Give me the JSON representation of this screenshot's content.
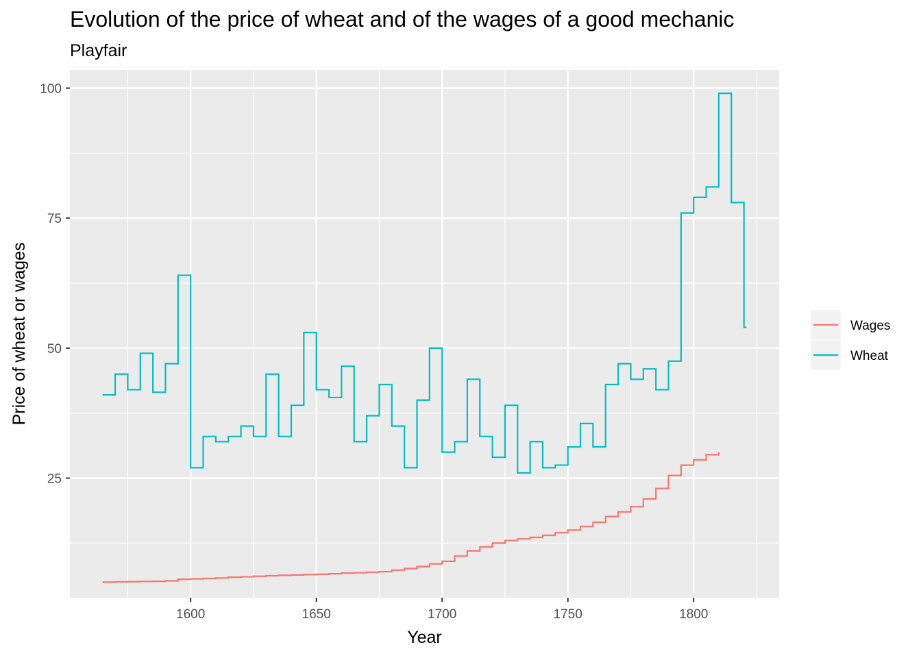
{
  "chart_data": {
    "type": "line",
    "line_style": "step",
    "title": "Evolution of the price of wheat and of the wages of a good mechanic",
    "subtitle": "Playfair",
    "xlabel": "Year",
    "ylabel": "Price of wheat or wages",
    "xlim": [
      1552,
      1834
    ],
    "ylim": [
      2,
      103.5
    ],
    "x_ticks": [
      1600,
      1650,
      1700,
      1750,
      1800
    ],
    "y_ticks": [
      25,
      50,
      75,
      100
    ],
    "grid": true,
    "legend": {
      "placement": "right",
      "entries": [
        "Wages",
        "Wheat"
      ]
    },
    "colors": {
      "Wages": "#F8766D",
      "Wheat": "#00BFC4",
      "panel": "#EBEBEB",
      "grid": "#FFFFFF"
    },
    "series": [
      {
        "name": "Wheat",
        "x": [
          1565,
          1570,
          1575,
          1580,
          1585,
          1590,
          1595,
          1600,
          1605,
          1610,
          1615,
          1620,
          1625,
          1630,
          1635,
          1640,
          1645,
          1650,
          1655,
          1660,
          1665,
          1670,
          1675,
          1680,
          1685,
          1690,
          1695,
          1700,
          1705,
          1710,
          1715,
          1720,
          1725,
          1730,
          1735,
          1740,
          1745,
          1750,
          1755,
          1760,
          1765,
          1770,
          1775,
          1780,
          1785,
          1790,
          1795,
          1800,
          1805,
          1810,
          1815,
          1820,
          1821
        ],
        "values": [
          41,
          45,
          42,
          49,
          41.5,
          47,
          64,
          27,
          33,
          32,
          33,
          35,
          33,
          45,
          33,
          39,
          53,
          42,
          40.5,
          46.5,
          32,
          37,
          43,
          35,
          27,
          40,
          50,
          30,
          32,
          44,
          33,
          29,
          39,
          26,
          32,
          27,
          27.5,
          31,
          35.5,
          31,
          43,
          47,
          44,
          46,
          42,
          47.5,
          76,
          79,
          81,
          99,
          78,
          54,
          54
        ]
      },
      {
        "name": "Wages",
        "x": [
          1565,
          1570,
          1575,
          1580,
          1585,
          1590,
          1595,
          1600,
          1605,
          1610,
          1615,
          1620,
          1625,
          1630,
          1635,
          1640,
          1645,
          1650,
          1655,
          1660,
          1665,
          1670,
          1675,
          1680,
          1685,
          1690,
          1695,
          1700,
          1705,
          1710,
          1715,
          1720,
          1725,
          1730,
          1735,
          1740,
          1745,
          1750,
          1755,
          1760,
          1765,
          1770,
          1775,
          1780,
          1785,
          1790,
          1795,
          1800,
          1805,
          1810
        ],
        "values": [
          5,
          5.05,
          5.08,
          5.12,
          5.15,
          5.25,
          5.54,
          5.61,
          5.69,
          5.78,
          5.94,
          6.01,
          6.12,
          6.22,
          6.3,
          6.37,
          6.45,
          6.5,
          6.6,
          6.75,
          6.8,
          6.9,
          7,
          7.3,
          7.6,
          8,
          8.5,
          9,
          10,
          11,
          11.75,
          12.5,
          13,
          13.3,
          13.6,
          14,
          14.5,
          15,
          15.7,
          16.5,
          17.6,
          18.5,
          19.5,
          21,
          23,
          25.5,
          27.5,
          28.5,
          29.5,
          30
        ]
      }
    ]
  }
}
